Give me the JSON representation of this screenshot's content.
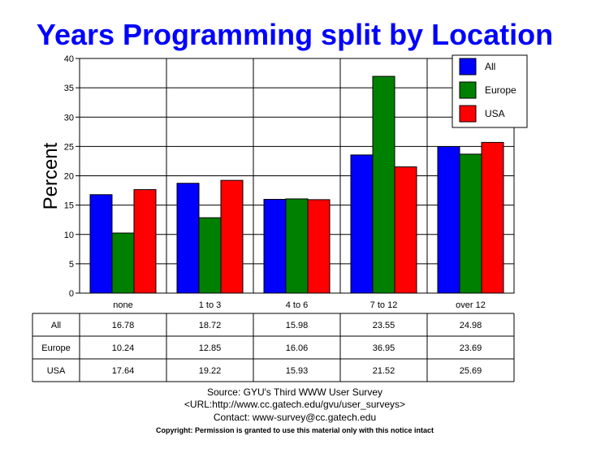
{
  "chart_data": {
    "type": "bar",
    "title": "Years Programming split by Location",
    "ylabel": "Percent",
    "xlabel": "",
    "ylim": [
      0,
      40
    ],
    "yticks": [
      0,
      5,
      10,
      15,
      20,
      25,
      30,
      35,
      40
    ],
    "grid": true,
    "legend_position": "top-right",
    "categories": [
      "none",
      "1 to 3",
      "4 to 6",
      "7 to 12",
      "over 12"
    ],
    "series": [
      {
        "name": "All",
        "color": "#0000ff",
        "values": [
          16.78,
          18.72,
          15.98,
          23.55,
          24.98
        ],
        "labels": [
          "16.78",
          "18.72",
          "15.98",
          "23.55",
          "24.98"
        ]
      },
      {
        "name": "Europe",
        "color": "#008000",
        "values": [
          10.24,
          12.85,
          16.06,
          36.95,
          23.69
        ],
        "labels": [
          "10.24",
          "12.85",
          "16.06",
          "36.95",
          "23.69"
        ]
      },
      {
        "name": "USA",
        "color": "#ff0000",
        "values": [
          17.64,
          19.22,
          15.93,
          21.52,
          25.69
        ],
        "labels": [
          "17.64",
          "19.22",
          "15.93",
          "21.52",
          "25.69"
        ]
      }
    ]
  },
  "footer": {
    "source": "Source: GYU's Third WWW User Survey",
    "url": "<URL:http://www.cc.gatech.edu/gvu/user_surveys>",
    "contact": "Contact: www-survey@cc.gatech.edu",
    "copyright": "Copyright: Permission is granted to use this material only with this notice intact"
  }
}
